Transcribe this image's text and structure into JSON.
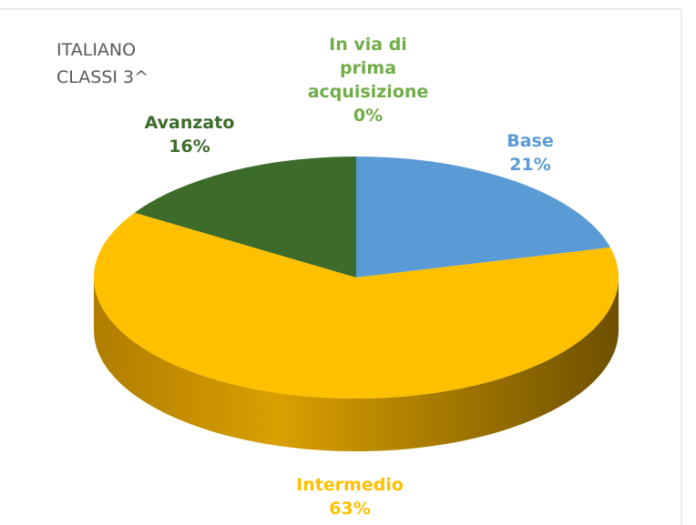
{
  "chart_data": {
    "type": "pie3d",
    "title": "ITALIANO\nCLASSI 3^",
    "categories": [
      "In via di\nprima\nacquisizione",
      "Base",
      "Intermedio",
      "Avanzato"
    ],
    "values": [
      0,
      21,
      63,
      16
    ],
    "value_labels": [
      "0%",
      "21%",
      "63%",
      "16%"
    ],
    "colors": [
      "#70ad47",
      "#5b9bd5",
      "#ffc000",
      "#3d6b2a"
    ],
    "label_colors": [
      "#70ad47",
      "#5b9bd5",
      "#ffc000",
      "#3d6b2a"
    ]
  }
}
